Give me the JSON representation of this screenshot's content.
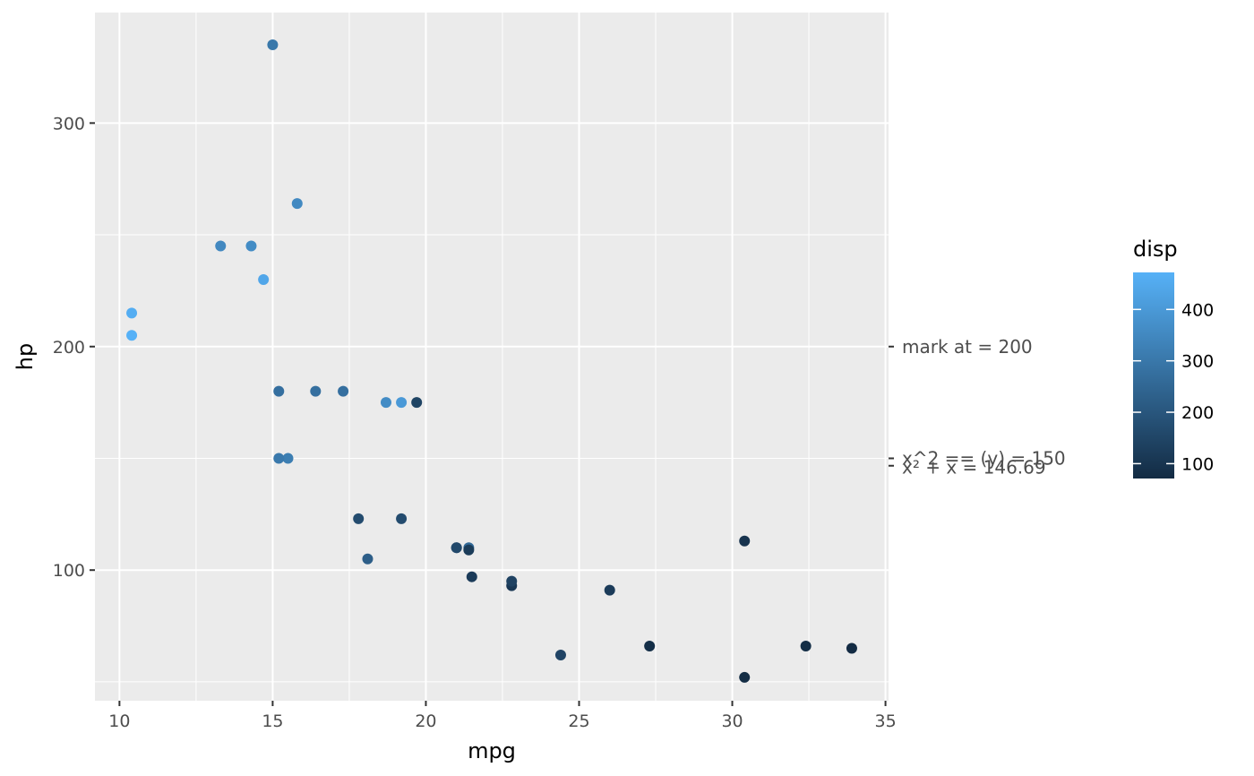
{
  "chart_data": {
    "type": "scatter",
    "xlabel": "mpg",
    "ylabel": "hp",
    "xlim": [
      9.2,
      35.1
    ],
    "ylim": [
      41.55,
      349.45
    ],
    "x_ticks": [
      10,
      15,
      20,
      25,
      30,
      35
    ],
    "x_tick_labels": [
      "10",
      "15",
      "20",
      "25",
      "30",
      "35"
    ],
    "y_ticks": [
      100,
      200,
      300
    ],
    "y_tick_labels": [
      "100",
      "200",
      "300"
    ],
    "grid": true,
    "secondary_y_axis": {
      "ticks": [
        {
          "value": 200,
          "label": "mark at = 200"
        },
        {
          "value": 150,
          "label": "x^2 ==  (y) = 150"
        },
        {
          "value": 146.69,
          "label": "x² + x = 146.69"
        }
      ]
    },
    "color_legend": {
      "title": "disp",
      "range": [
        71.1,
        472
      ],
      "ticks": [
        100,
        200,
        300,
        400
      ],
      "tick_labels": [
        "100",
        "200",
        "300",
        "400"
      ],
      "low_color": "#132B43",
      "high_color": "#56B1F7",
      "placement": "right"
    },
    "points": [
      {
        "x": 21.0,
        "y": 110,
        "disp": 160
      },
      {
        "x": 21.0,
        "y": 110,
        "disp": 160
      },
      {
        "x": 22.8,
        "y": 93,
        "disp": 108
      },
      {
        "x": 21.4,
        "y": 110,
        "disp": 258
      },
      {
        "x": 18.7,
        "y": 175,
        "disp": 360
      },
      {
        "x": 18.1,
        "y": 105,
        "disp": 225
      },
      {
        "x": 14.3,
        "y": 245,
        "disp": 360
      },
      {
        "x": 24.4,
        "y": 62,
        "disp": 146.7
      },
      {
        "x": 22.8,
        "y": 95,
        "disp": 140.8
      },
      {
        "x": 19.2,
        "y": 123,
        "disp": 167.6
      },
      {
        "x": 17.8,
        "y": 123,
        "disp": 167.6
      },
      {
        "x": 16.4,
        "y": 180,
        "disp": 275.8
      },
      {
        "x": 17.3,
        "y": 180,
        "disp": 275.8
      },
      {
        "x": 15.2,
        "y": 180,
        "disp": 275.8
      },
      {
        "x": 10.4,
        "y": 205,
        "disp": 472
      },
      {
        "x": 10.4,
        "y": 215,
        "disp": 460
      },
      {
        "x": 14.7,
        "y": 230,
        "disp": 440
      },
      {
        "x": 32.4,
        "y": 66,
        "disp": 78.7
      },
      {
        "x": 30.4,
        "y": 52,
        "disp": 75.7
      },
      {
        "x": 33.9,
        "y": 65,
        "disp": 71.1
      },
      {
        "x": 21.5,
        "y": 97,
        "disp": 120.1
      },
      {
        "x": 15.5,
        "y": 150,
        "disp": 318
      },
      {
        "x": 15.2,
        "y": 150,
        "disp": 304
      },
      {
        "x": 13.3,
        "y": 245,
        "disp": 350
      },
      {
        "x": 19.2,
        "y": 175,
        "disp": 400
      },
      {
        "x": 27.3,
        "y": 66,
        "disp": 79
      },
      {
        "x": 26.0,
        "y": 91,
        "disp": 120.3
      },
      {
        "x": 30.4,
        "y": 113,
        "disp": 95.1
      },
      {
        "x": 15.8,
        "y": 264,
        "disp": 351
      },
      {
        "x": 19.7,
        "y": 175,
        "disp": 145
      },
      {
        "x": 15.0,
        "y": 335,
        "disp": 301
      },
      {
        "x": 21.4,
        "y": 109,
        "disp": 121
      }
    ]
  }
}
